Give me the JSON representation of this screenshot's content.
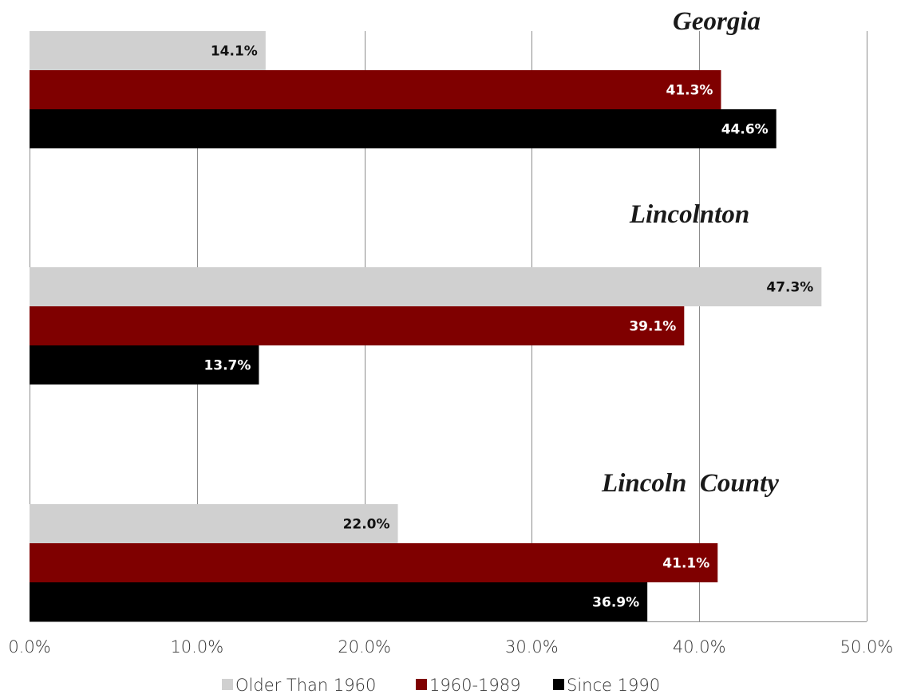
{
  "chart_data": {
    "type": "bar",
    "orientation": "horizontal",
    "categories": [
      "Georgia",
      "Lincolnton",
      "Lincoln  County"
    ],
    "series": [
      {
        "name": "Older Than 1960",
        "values": [
          14.1,
          47.3,
          22.0
        ],
        "color": "#d0d0d0",
        "label_color": "#111111"
      },
      {
        "name": "1960-1989",
        "values": [
          41.3,
          39.1,
          41.1
        ],
        "color": "#7f0000",
        "label_color": "#ffffff"
      },
      {
        "name": "Since 1990",
        "values": [
          44.6,
          13.7,
          36.9
        ],
        "color": "#000000",
        "label_color": "#ffffff"
      }
    ],
    "data_labels": [
      [
        "14.1%",
        "47.3%",
        "22.0%"
      ],
      [
        "41.3%",
        "39.1%",
        "41.1%"
      ],
      [
        "44.6%",
        "13.7%",
        "36.9%"
      ]
    ],
    "xlim": [
      0,
      50
    ],
    "xticks": [
      0,
      10,
      20,
      30,
      40,
      50
    ],
    "xtick_labels": [
      "0.0%",
      "10.0%",
      "20.0%",
      "30.0%",
      "40.0%",
      "50.0%"
    ],
    "grid": true,
    "legend_position": "bottom"
  }
}
